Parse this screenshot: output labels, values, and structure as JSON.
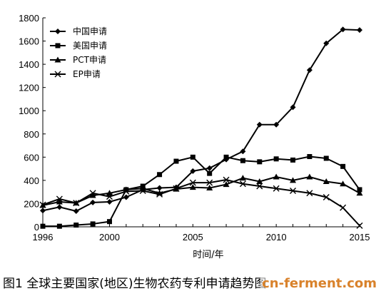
{
  "chart_data": {
    "type": "line",
    "xlabel": "时间/年",
    "ylabel": "",
    "ylim": [
      0,
      1800
    ],
    "xlim": [
      1996,
      2015
    ],
    "yticks": [
      0,
      200,
      400,
      600,
      800,
      1000,
      1200,
      1400,
      1600,
      1800
    ],
    "xticks": [
      1996,
      2000,
      2005,
      2010,
      2015
    ],
    "grid": false,
    "legend_position": "top-left",
    "x": [
      1996,
      1997,
      1998,
      1999,
      2000,
      2001,
      2002,
      2003,
      2004,
      2005,
      2006,
      2007,
      2008,
      2009,
      2010,
      2011,
      2012,
      2013,
      2014,
      2015
    ],
    "series": [
      {
        "name": "中国申请",
        "marker": "diamond",
        "values": [
          140,
          170,
          135,
          210,
          215,
          255,
          320,
          335,
          340,
          480,
          505,
          580,
          650,
          880,
          880,
          1030,
          1350,
          1580,
          1700,
          1695
        ]
      },
      {
        "name": "美国申请",
        "marker": "square",
        "values": [
          5,
          5,
          15,
          25,
          45,
          320,
          350,
          450,
          565,
          600,
          460,
          600,
          570,
          560,
          585,
          575,
          605,
          590,
          520,
          320
        ]
      },
      {
        "name": "PCT申请",
        "marker": "triangle",
        "values": [
          185,
          215,
          205,
          270,
          290,
          320,
          330,
          290,
          325,
          340,
          335,
          365,
          420,
          390,
          430,
          400,
          430,
          390,
          370,
          290
        ]
      },
      {
        "name": "EP申请",
        "marker": "x",
        "values": [
          190,
          240,
          205,
          290,
          260,
          305,
          310,
          280,
          330,
          380,
          380,
          405,
          370,
          350,
          330,
          310,
          290,
          255,
          165,
          10
        ]
      }
    ]
  },
  "caption": "图1  全球主要国家(地区)生物农药专利申请趋势图",
  "watermark": "cn-ferment.com"
}
